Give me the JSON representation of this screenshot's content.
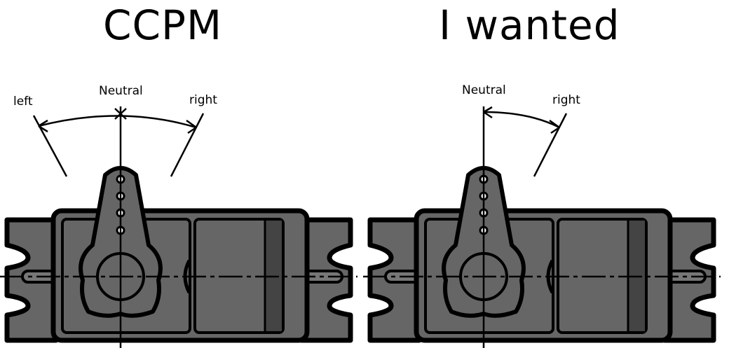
{
  "panels": [
    {
      "title": "CCPM",
      "labels": {
        "left": "left",
        "neutral": "Neutral",
        "right": "right"
      }
    },
    {
      "title": "I wanted",
      "labels": {
        "neutral": "Neutral",
        "right": "right"
      }
    }
  ],
  "colors": {
    "body": "#666666",
    "body_dark": "#444444",
    "outline": "#000000",
    "background": "#ffffff"
  }
}
